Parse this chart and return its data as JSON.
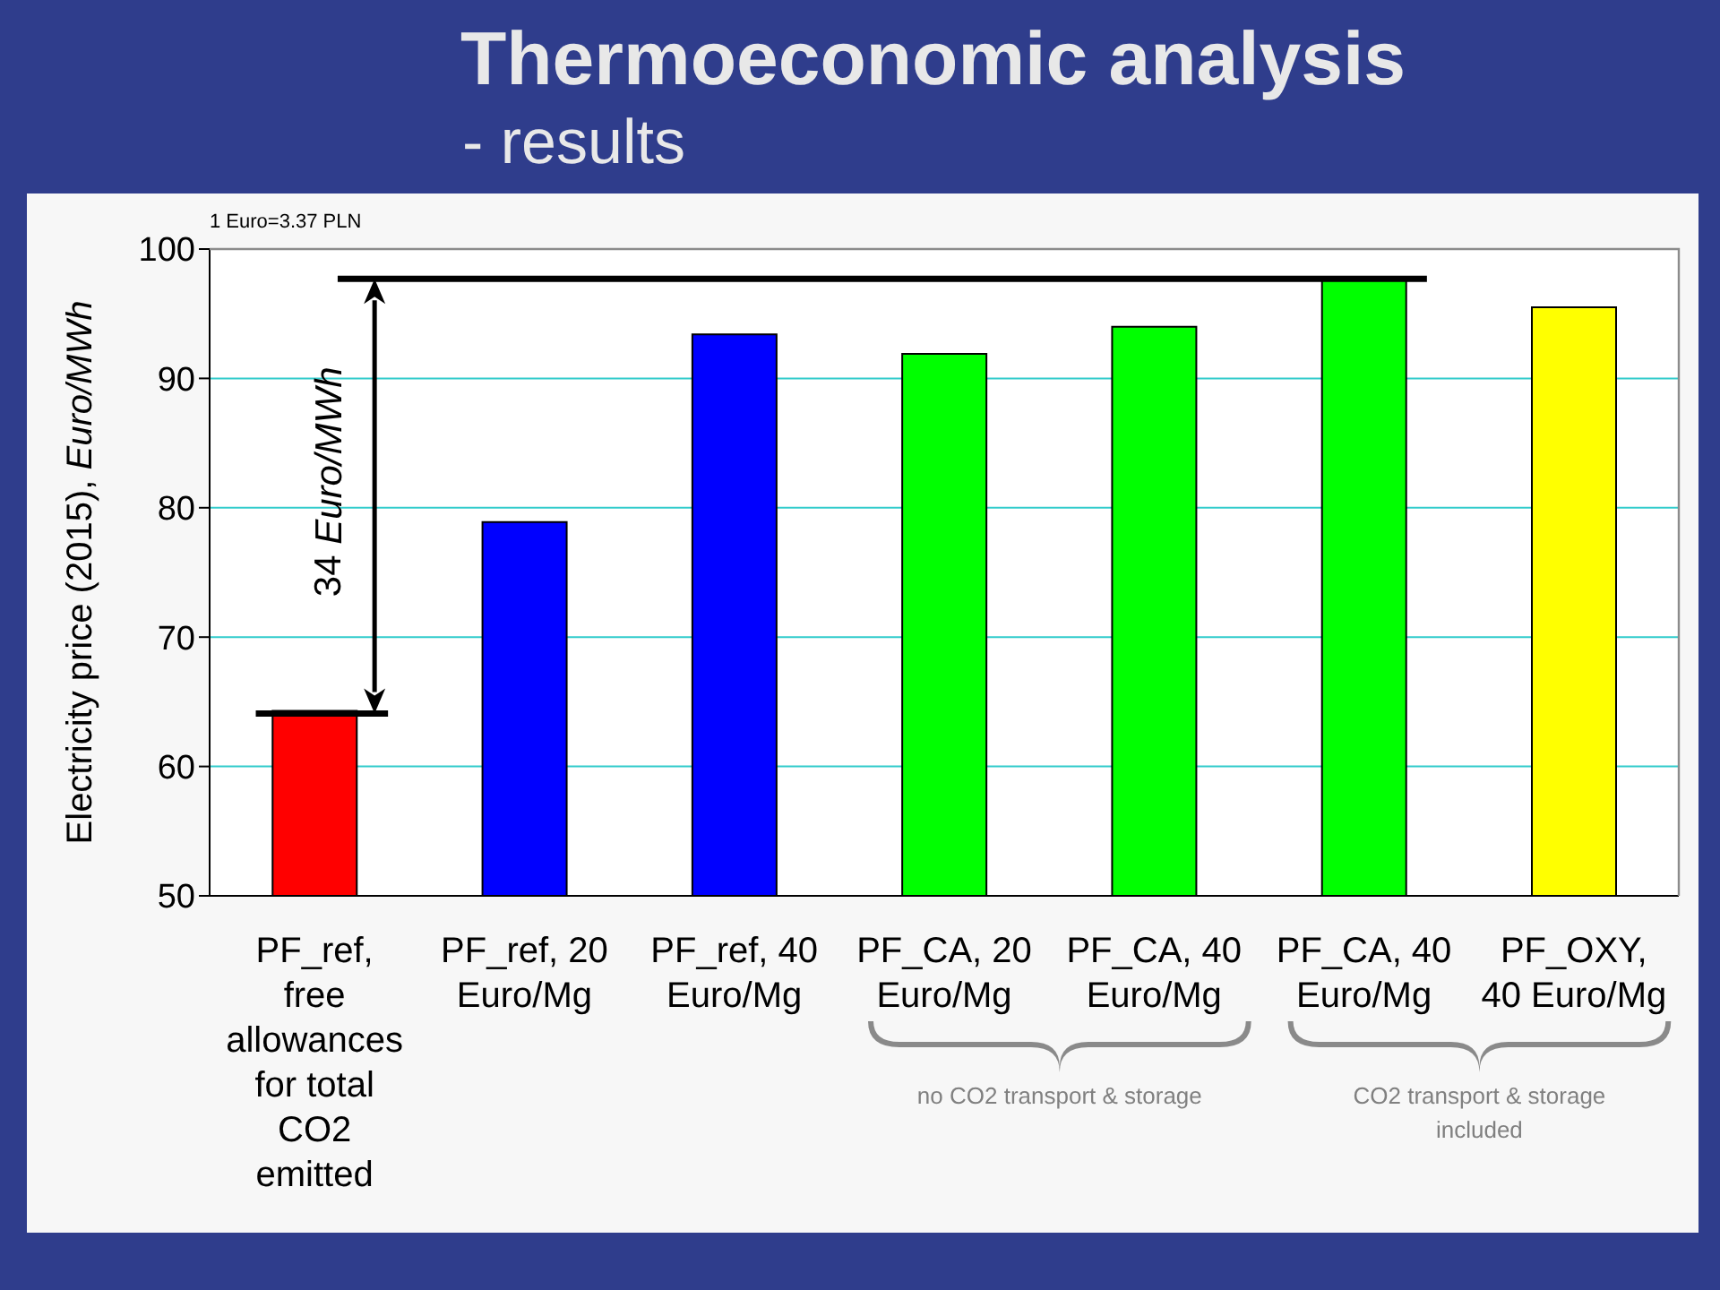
{
  "chart_data": {
    "type": "bar",
    "title": "Thermoeconomic analysis",
    "subtitle": "- results",
    "ylabel": "Electricity price (2015), Euro/MWh",
    "categories": [
      "PF_ref, free allowances for total CO2 emitted",
      "PF_ref, 20 Euro/Mg",
      "PF_ref, 40 Euro/Mg",
      "PF_CA, 20 Euro/Mg",
      "PF_CA, 40 Euro/Mg",
      "PF_CA, 40 Euro/Mg",
      "PF_OXY, 40 Euro/Mg"
    ],
    "values": [
      64.3,
      78.9,
      93.4,
      91.9,
      94.0,
      97.8,
      95.5
    ],
    "colors": [
      "#ff0000",
      "#0000ff",
      "#0000ff",
      "#00ff00",
      "#00ff00",
      "#00ff00",
      "#ffff00"
    ],
    "ylim": [
      50,
      100
    ],
    "yticks": [
      50,
      60,
      70,
      80,
      90,
      100
    ],
    "grid": "y",
    "ref_lines": [
      {
        "axis": "y",
        "value": 64.1,
        "color": "#000000"
      },
      {
        "axis": "y",
        "value": 97.7,
        "color": "#000000"
      }
    ],
    "annotations": [
      "1 Euro=3.37 PLN",
      "34 Euro/MWh",
      "no CO2 transport & storage",
      "CO2 transport & storage included"
    ]
  }
}
